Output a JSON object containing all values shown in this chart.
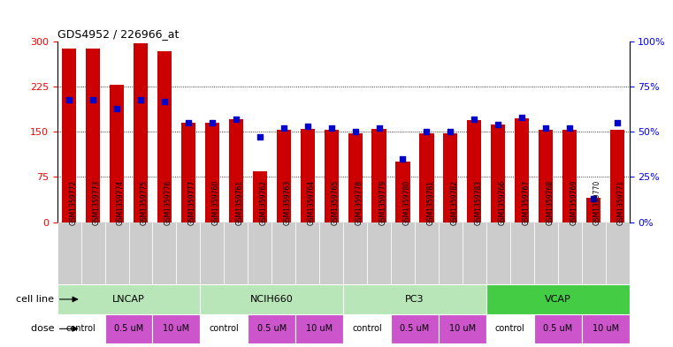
{
  "title": "GDS4952 / 226966_at",
  "samples": [
    "GSM1359772",
    "GSM1359773",
    "GSM1359774",
    "GSM1359775",
    "GSM1359776",
    "GSM1359777",
    "GSM1359760",
    "GSM1359761",
    "GSM1359762",
    "GSM1359763",
    "GSM1359764",
    "GSM1359765",
    "GSM1359778",
    "GSM1359779",
    "GSM1359780",
    "GSM1359781",
    "GSM1359782",
    "GSM1359783",
    "GSM1359766",
    "GSM1359767",
    "GSM1359768",
    "GSM1359769",
    "GSM1359770",
    "GSM1359771"
  ],
  "counts": [
    289,
    289,
    228,
    298,
    284,
    165,
    165,
    171,
    85,
    153,
    155,
    153,
    148,
    155,
    100,
    148,
    148,
    170,
    162,
    172,
    153,
    153,
    40,
    153
  ],
  "percentile_ranks": [
    68,
    68,
    63,
    68,
    67,
    55,
    55,
    57,
    47,
    52,
    53,
    52,
    50,
    52,
    35,
    50,
    50,
    57,
    54,
    58,
    52,
    52,
    13,
    55
  ],
  "cell_lines": [
    {
      "name": "LNCAP",
      "start": 0,
      "end": 6,
      "color": "#b8e6b8"
    },
    {
      "name": "NCIH660",
      "start": 6,
      "end": 12,
      "color": "#b8e6b8"
    },
    {
      "name": "PC3",
      "start": 12,
      "end": 18,
      "color": "#b8e6b8"
    },
    {
      "name": "VCAP",
      "start": 18,
      "end": 24,
      "color": "#44cc44"
    }
  ],
  "doses": [
    {
      "label": "control",
      "color": "#ffffff"
    },
    {
      "label": "0.5 uM",
      "color": "#ee66ee"
    },
    {
      "label": "10 uM",
      "color": "#ee66ee"
    },
    {
      "label": "control",
      "color": "#ffffff"
    },
    {
      "label": "0.5 uM",
      "color": "#ee66ee"
    },
    {
      "label": "10 uM",
      "color": "#ee66ee"
    },
    {
      "label": "control",
      "color": "#ffffff"
    },
    {
      "label": "0.5 uM",
      "color": "#ee66ee"
    },
    {
      "label": "10 uM",
      "color": "#ee66ee"
    },
    {
      "label": "control",
      "color": "#ffffff"
    },
    {
      "label": "0.5 uM",
      "color": "#ee66ee"
    },
    {
      "label": "10 uM",
      "color": "#ee66ee"
    }
  ],
  "bar_color": "#CC0000",
  "dot_color": "#0000CC",
  "ylim_left": [
    0,
    300
  ],
  "ylim_right": [
    0,
    100
  ],
  "yticks_left": [
    0,
    75,
    150,
    225,
    300
  ],
  "yticks_right": [
    0,
    25,
    50,
    75,
    100
  ],
  "ytick_labels_right": [
    "0%",
    "25%",
    "50%",
    "75%",
    "100%"
  ],
  "xtick_bg": "#cccccc",
  "plot_bg": "#ffffff"
}
